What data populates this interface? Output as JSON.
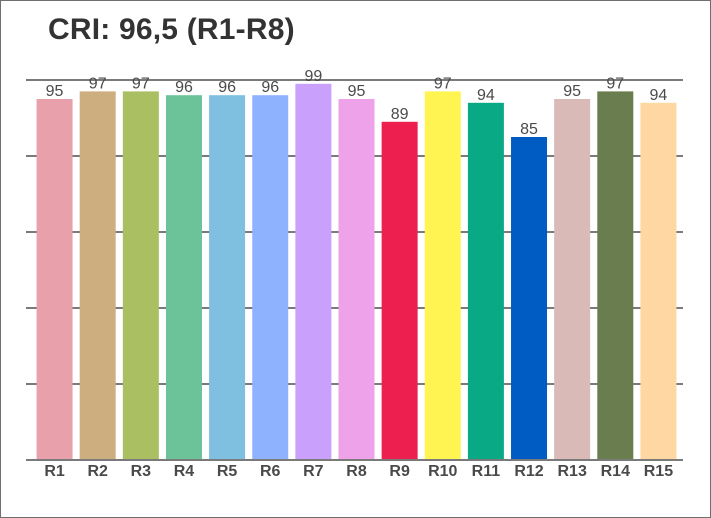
{
  "chart_data": {
    "type": "bar",
    "title": "CRI: 96,5 (R1-R8)",
    "xlabel": "",
    "ylabel": "",
    "ylim": [
      0,
      100
    ],
    "grid": true,
    "legend": "none",
    "categories": [
      "R1",
      "R2",
      "R3",
      "R4",
      "R5",
      "R6",
      "R7",
      "R8",
      "R9",
      "R10",
      "R11",
      "R12",
      "R13",
      "R14",
      "R15"
    ],
    "values": [
      95,
      97,
      97,
      96,
      96,
      96,
      99,
      95,
      89,
      97,
      94,
      85,
      95,
      97,
      94
    ],
    "data_labels": [
      "95",
      "97",
      "97",
      "96",
      "96",
      "96",
      "99",
      "95",
      "89",
      "97",
      "94",
      "85",
      "95",
      "97",
      "94"
    ],
    "colors": [
      "#e8a0aa",
      "#cdae7f",
      "#a9bf61",
      "#6cc39a",
      "#7fbfe0",
      "#8fb2ff",
      "#c9a0fb",
      "#eda2ea",
      "#ec1f4f",
      "#fff451",
      "#0aa985",
      "#005bc3",
      "#d9bab7",
      "#6a7d4e",
      "#ffd7a2"
    ]
  }
}
